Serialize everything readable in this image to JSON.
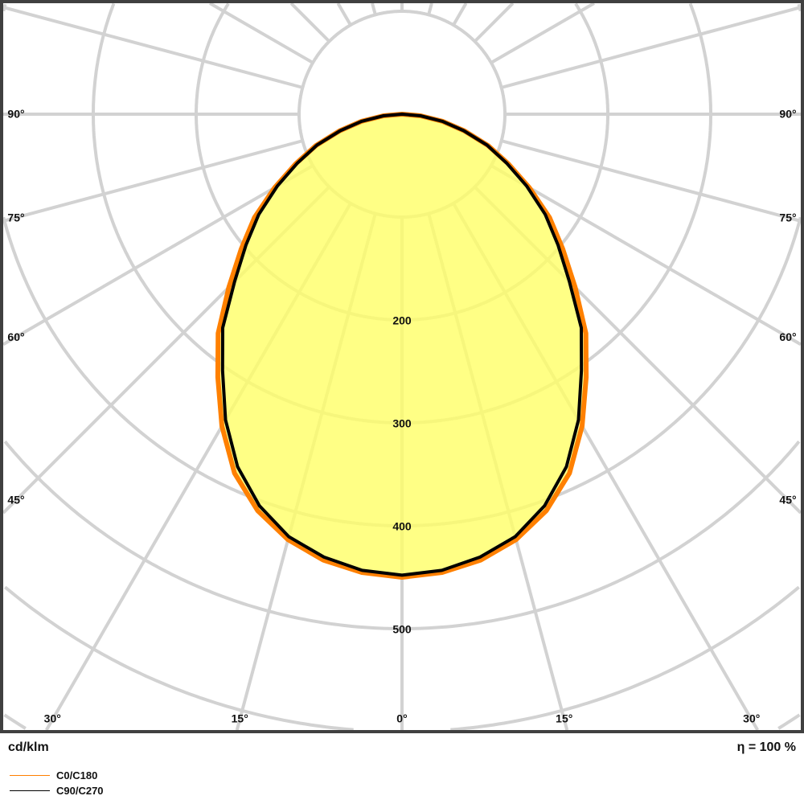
{
  "chart_data": {
    "type": "polar-line",
    "unit_label": "cd/klm",
    "efficiency_label": "η = 100 %",
    "radial_ticks": [
      200,
      300,
      400,
      500
    ],
    "radial_rings": [
      100,
      200,
      300,
      400,
      500,
      600,
      700
    ],
    "angle_ticks_side": [
      "90°",
      "75°",
      "60°",
      "45°"
    ],
    "angle_ticks_bottom": [
      "30°",
      "15°",
      "0°",
      "15°",
      "30°"
    ],
    "angles_deg": [
      0,
      5,
      10,
      15,
      20,
      25,
      30,
      35,
      40,
      45,
      50,
      55,
      60,
      65,
      70,
      75,
      80,
      85,
      90
    ],
    "series": [
      {
        "name": "C0/C180",
        "color": "#ff8000",
        "values": [
          450,
          447,
          440,
          428,
          410,
          385,
          350,
          312,
          278,
          238,
          204,
          175,
          143,
          114,
          89,
          63,
          40,
          18,
          0
        ]
      },
      {
        "name": "C90/C270",
        "color": "#000000",
        "values": [
          448,
          445,
          437,
          425,
          405,
          378,
          343,
          304,
          271,
          230,
          198,
          170,
          140,
          112,
          88,
          62,
          40,
          18,
          0
        ]
      }
    ],
    "fill_color": "#ffff66",
    "grid": true
  }
}
